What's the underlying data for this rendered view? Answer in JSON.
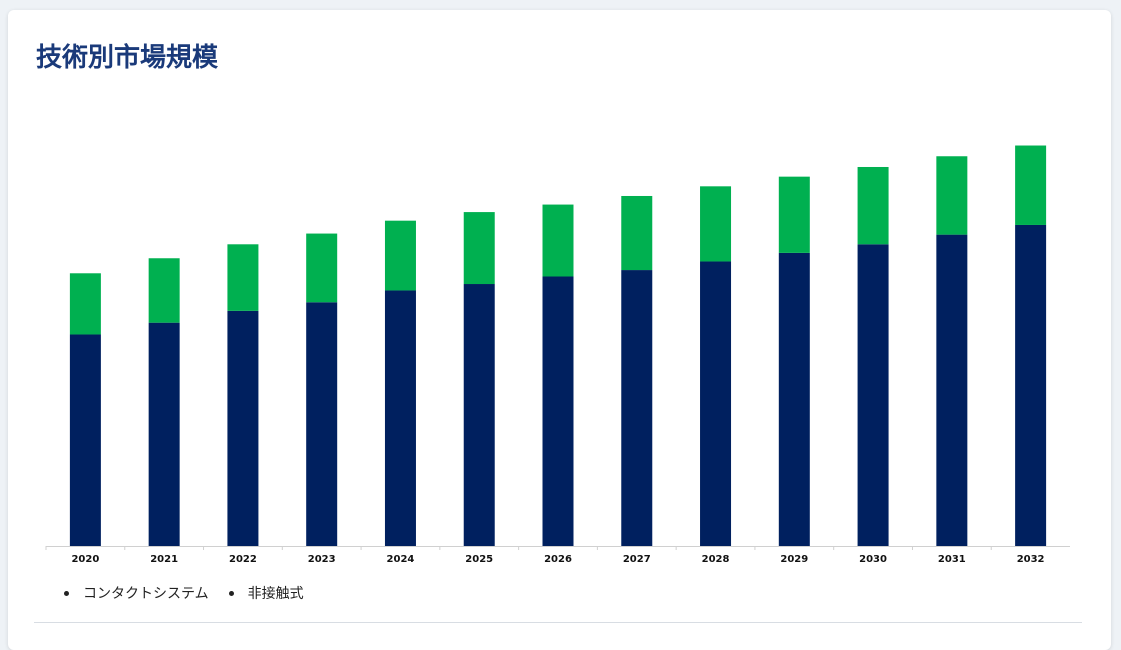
{
  "title": "技術別市場規模",
  "chart_data": {
    "type": "bar",
    "stacked": true,
    "categories": [
      "2020",
      "2021",
      "2022",
      "2023",
      "2024",
      "2025",
      "2026",
      "2027",
      "2028",
      "2029",
      "2030",
      "2031",
      "2032"
    ],
    "series": [
      {
        "name": "コンタクトシステム",
        "color": "#00205f",
        "values": [
          197,
          208,
          219,
          227,
          238,
          244,
          251,
          257,
          265,
          273,
          281,
          290,
          299
        ]
      },
      {
        "name": "非接触式",
        "color": "#00b050",
        "values": [
          57,
          60,
          62,
          64,
          65,
          67,
          67,
          69,
          70,
          71,
          72,
          73,
          74
        ]
      }
    ],
    "ylim": [
      0,
      380
    ],
    "grid": false,
    "legend_position": "bottom-left"
  },
  "legend": {
    "items": [
      "コンタクトシステム",
      "非接触式"
    ]
  }
}
